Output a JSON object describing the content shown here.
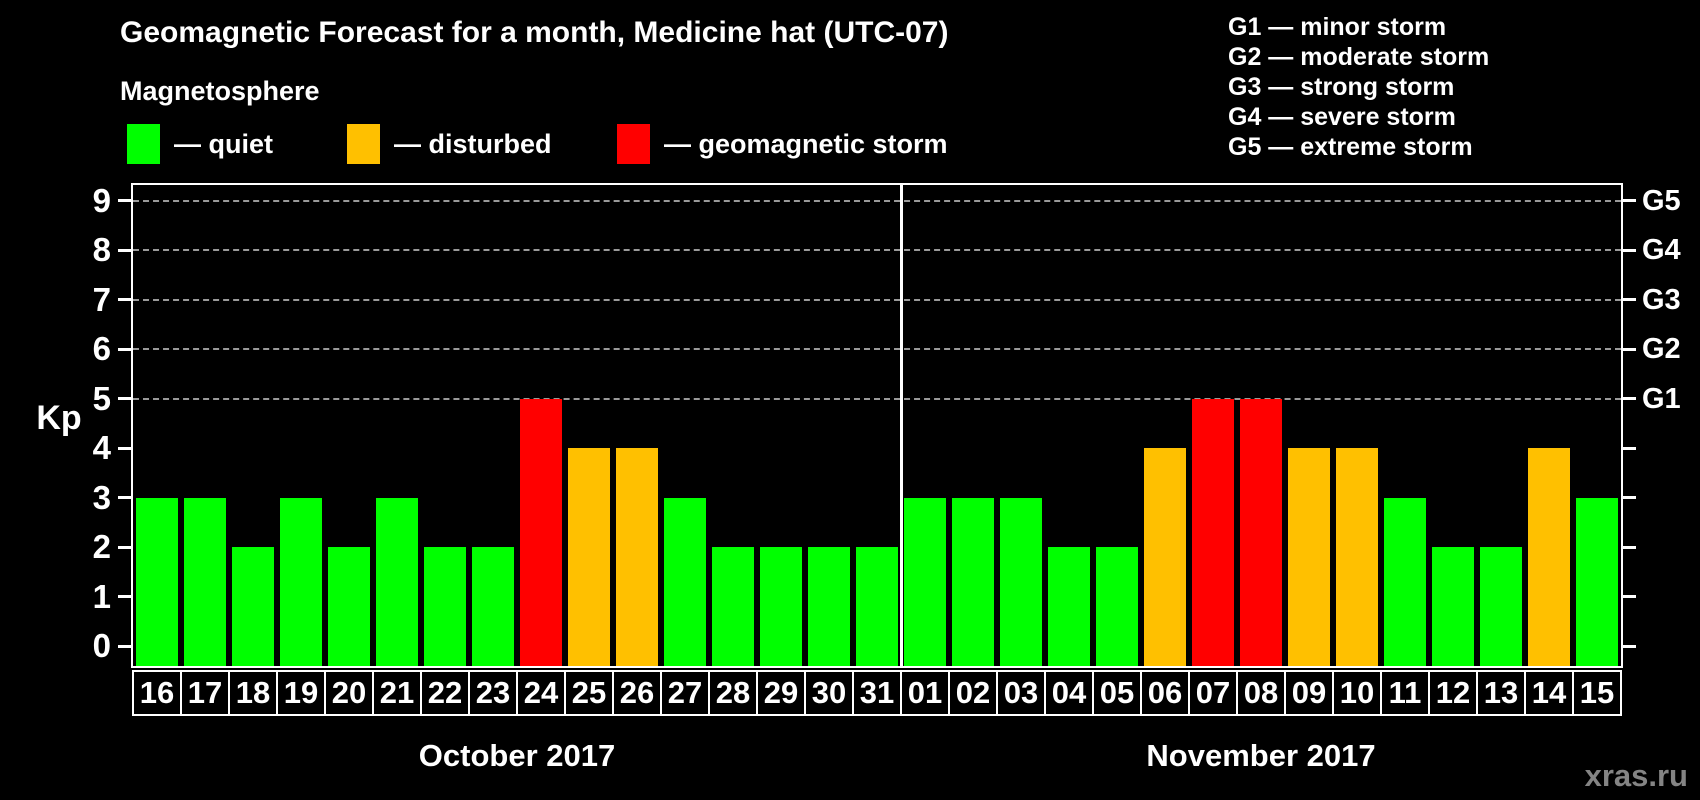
{
  "title": "Geomagnetic Forecast for a month, Medicine hat (UTC-07)",
  "subtitle": "Magnetosphere",
  "legend": {
    "items": [
      {
        "label": "— quiet",
        "status": "quiet",
        "color": "#00ff00"
      },
      {
        "label": "— disturbed",
        "status": "disturbed",
        "color": "#ffc000"
      },
      {
        "label": "— geomagnetic storm",
        "status": "storm",
        "color": "#ff0000"
      }
    ]
  },
  "gscale_legend": [
    {
      "text": "G1 — minor storm"
    },
    {
      "text": "G2 — moderate storm"
    },
    {
      "text": "G3 — strong storm"
    },
    {
      "text": "G4 — severe storm"
    },
    {
      "text": "G5 — extreme storm"
    }
  ],
  "axis": {
    "kp_label": "Kp",
    "kp_ticks": [
      "0",
      "1",
      "2",
      "3",
      "4",
      "5",
      "6",
      "7",
      "8",
      "9"
    ],
    "g_ticks": [
      {
        "label": "G1",
        "kp": 5
      },
      {
        "label": "G2",
        "kp": 6
      },
      {
        "label": "G3",
        "kp": 7
      },
      {
        "label": "G4",
        "kp": 8
      },
      {
        "label": "G5",
        "kp": 9
      }
    ]
  },
  "watermark": "xras.ru",
  "chart_data": {
    "type": "bar",
    "title": "Geomagnetic Forecast for a month, Medicine hat (UTC-07)",
    "xlabel": "",
    "ylabel": "Kp",
    "ylim": [
      0,
      9.4
    ],
    "yticks": [
      0,
      1,
      2,
      3,
      4,
      5,
      6,
      7,
      8,
      9
    ],
    "gridlines_at": [
      5,
      6,
      7,
      8,
      9
    ],
    "grid": "dashed horizontal gridlines at Kp 5-9 (G1-G5 storm levels)",
    "legend_position": "top-left",
    "right_axis": {
      "G1": 5,
      "G2": 6,
      "G3": 7,
      "G4": 8,
      "G5": 9
    },
    "color_rule": "Kp<=3 quiet (green), Kp=4 disturbed (orange), Kp>=5 geomagnetic storm (red)",
    "status_colors": {
      "quiet": "#00ff00",
      "disturbed": "#ffc000",
      "storm": "#ff0000"
    },
    "groups": [
      {
        "label": "October 2017",
        "categories": [
          "16",
          "17",
          "18",
          "19",
          "20",
          "21",
          "22",
          "23",
          "24",
          "25",
          "26",
          "27",
          "28",
          "29",
          "30",
          "31"
        ],
        "values": [
          3,
          3,
          2,
          3,
          2,
          3,
          2,
          2,
          5,
          4,
          4,
          3,
          2,
          2,
          2,
          2
        ],
        "statuses": [
          "quiet",
          "quiet",
          "quiet",
          "quiet",
          "quiet",
          "quiet",
          "quiet",
          "quiet",
          "storm",
          "disturbed",
          "disturbed",
          "quiet",
          "quiet",
          "quiet",
          "quiet",
          "quiet"
        ]
      },
      {
        "label": "November 2017",
        "categories": [
          "01",
          "02",
          "03",
          "04",
          "05",
          "06",
          "07",
          "08",
          "09",
          "10",
          "11",
          "12",
          "13",
          "14",
          "15"
        ],
        "values": [
          3,
          3,
          3,
          2,
          2,
          4,
          5,
          5,
          4,
          4,
          3,
          2,
          2,
          4,
          3
        ],
        "statuses": [
          "quiet",
          "quiet",
          "quiet",
          "quiet",
          "quiet",
          "disturbed",
          "storm",
          "storm",
          "disturbed",
          "disturbed",
          "quiet",
          "quiet",
          "quiet",
          "disturbed",
          "quiet"
        ]
      }
    ]
  }
}
